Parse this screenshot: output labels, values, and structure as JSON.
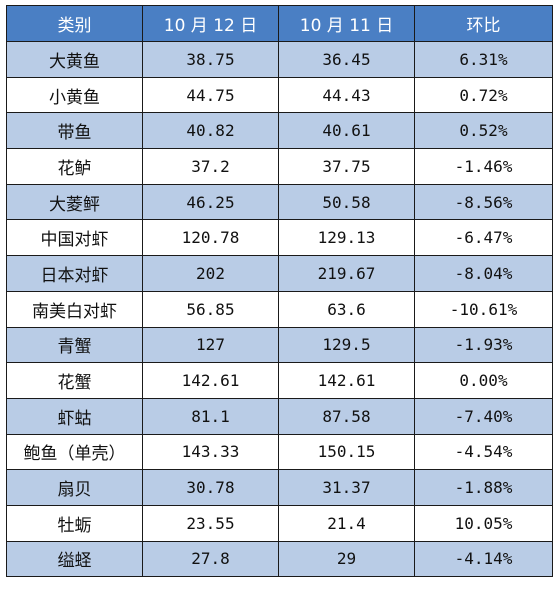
{
  "table": {
    "headers": [
      "类别",
      "10 月 12 日",
      "10 月 11 日",
      "环比"
    ],
    "rows": [
      [
        "大黄鱼",
        "38.75",
        "36.45",
        "6.31%"
      ],
      [
        "小黄鱼",
        "44.75",
        "44.43",
        "0.72%"
      ],
      [
        "带鱼",
        "40.82",
        "40.61",
        "0.52%"
      ],
      [
        "花鲈",
        "37.2",
        "37.75",
        "-1.46%"
      ],
      [
        "大菱鲆",
        "46.25",
        "50.58",
        "-8.56%"
      ],
      [
        "中国对虾",
        "120.78",
        "129.13",
        "-6.47%"
      ],
      [
        "日本对虾",
        "202",
        "219.67",
        "-8.04%"
      ],
      [
        "南美白对虾",
        "56.85",
        "63.6",
        "-10.61%"
      ],
      [
        "青蟹",
        "127",
        "129.5",
        "-1.93%"
      ],
      [
        "花蟹",
        "142.61",
        "142.61",
        "0.00%"
      ],
      [
        "虾蛄",
        "81.1",
        "87.58",
        "-7.40%"
      ],
      [
        "鲍鱼（单壳）",
        "143.33",
        "150.15",
        "-4.54%"
      ],
      [
        "扇贝",
        "30.78",
        "31.37",
        "-1.88%"
      ],
      [
        "牡蛎",
        "23.55",
        "21.4",
        "10.05%"
      ],
      [
        "缢蛏",
        "27.8",
        "29",
        "-4.14%"
      ]
    ]
  },
  "colors": {
    "header_bg": "#4a7fc4",
    "header_text": "#ffffff",
    "band_row_bg": "#b9cce6",
    "plain_row_bg": "#ffffff",
    "border": "#1a1a1a"
  }
}
